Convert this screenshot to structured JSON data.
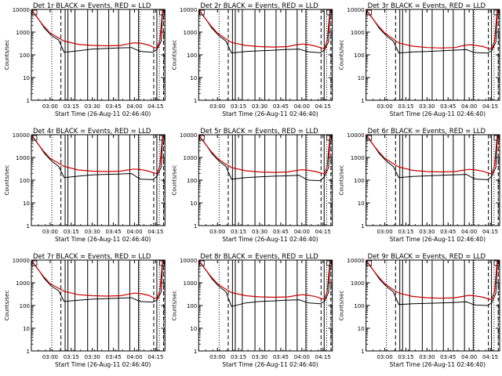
{
  "chart_data": [
    {
      "type": "line",
      "title": "Det 1r BLACK = Events, RED = LLD",
      "xlabel": "Start Time (26-Aug-11 02:46:40)",
      "ylabel": "Counts/sec",
      "yscale": "log",
      "ylim": [
        1,
        10000
      ],
      "xticks": [
        "03:00",
        "03:15",
        "03:30",
        "03:45",
        "04:00",
        "04:15"
      ],
      "yticks": [
        "1",
        "10",
        "100",
        "1000",
        "10000"
      ],
      "series": [
        {
          "color": "#000000",
          "x": [
            "02:46:40",
            "02:52",
            "02:56",
            "03:01",
            "03:06",
            "03:10",
            "03:20",
            "03:30",
            "03:40",
            "03:48",
            "03:53",
            "03:58",
            "04:03",
            "04:05",
            "04:13",
            "04:16",
            "04:19",
            "04:20"
          ],
          "y": [
            10000,
            3500,
            1500,
            700,
            450,
            130,
            150,
            180,
            190,
            200,
            205,
            210,
            150,
            140,
            130,
            175,
            400,
            9000
          ]
        },
        {
          "color": "#cc0000",
          "x": [
            "02:46:40",
            "02:50",
            "02:55",
            "03:00",
            "03:05",
            "03:10",
            "03:20",
            "03:30",
            "03:40",
            "03:50",
            "03:55",
            "04:00",
            "04:05",
            "04:10",
            "04:14",
            "04:16",
            "04:18",
            "04:20"
          ],
          "y": [
            10000,
            5000,
            2000,
            900,
            600,
            400,
            290,
            260,
            250,
            260,
            300,
            340,
            320,
            270,
            210,
            200,
            450,
            10000
          ]
        }
      ]
    },
    {
      "type": "line",
      "title": "Det 2r BLACK = Events, RED = LLD",
      "xlabel": "Start Time (26-Aug-11 02:46:40)",
      "ylabel": "Counts/sec",
      "yscale": "log",
      "ylim": [
        1,
        10000
      ],
      "xticks": [
        "03:00",
        "03:15",
        "03:30",
        "03:45",
        "04:00",
        "04:15"
      ],
      "yticks": [
        "1",
        "10",
        "100",
        "1000",
        "10000"
      ],
      "series": [
        {
          "color": "#000000",
          "x": [
            "02:46:40",
            "02:52",
            "02:56",
            "03:01",
            "03:06",
            "03:10",
            "03:20",
            "03:30",
            "03:40",
            "03:48",
            "03:53",
            "03:58",
            "04:03",
            "04:05",
            "04:13",
            "04:16",
            "04:19",
            "04:20"
          ],
          "y": [
            10000,
            3500,
            1500,
            700,
            400,
            120,
            140,
            150,
            160,
            170,
            175,
            180,
            145,
            135,
            125,
            160,
            380,
            8500
          ]
        },
        {
          "color": "#cc0000",
          "x": [
            "02:46:40",
            "02:50",
            "02:55",
            "03:00",
            "03:05",
            "03:10",
            "03:20",
            "03:30",
            "03:40",
            "03:50",
            "03:55",
            "04:00",
            "04:05",
            "04:10",
            "04:14",
            "04:16",
            "04:18",
            "04:20"
          ],
          "y": [
            10000,
            5000,
            2000,
            900,
            550,
            350,
            260,
            230,
            220,
            230,
            270,
            300,
            280,
            240,
            200,
            190,
            420,
            10000
          ]
        }
      ]
    },
    {
      "type": "line",
      "title": "Det 3r BLACK = Events, RED = LLD",
      "xlabel": "Start Time (26-Aug-11 02:46:40)",
      "ylabel": "Counts/sec",
      "yscale": "log",
      "ylim": [
        1,
        10000
      ],
      "xticks": [
        "03:00",
        "03:15",
        "03:30",
        "03:45",
        "04:00",
        "04:15"
      ],
      "yticks": [
        "1",
        "10",
        "100",
        "1000",
        "10000"
      ],
      "series": [
        {
          "color": "#000000",
          "x": [
            "02:46:40",
            "02:52",
            "02:56",
            "03:01",
            "03:06",
            "03:10",
            "03:20",
            "03:30",
            "03:40",
            "03:48",
            "03:53",
            "03:58",
            "04:03",
            "04:05",
            "04:13",
            "04:16",
            "04:19",
            "04:20"
          ],
          "y": [
            10000,
            3500,
            1500,
            700,
            400,
            120,
            135,
            140,
            150,
            160,
            165,
            170,
            130,
            125,
            120,
            150,
            370,
            8500
          ]
        },
        {
          "color": "#cc0000",
          "x": [
            "02:46:40",
            "02:50",
            "02:55",
            "03:00",
            "03:05",
            "03:10",
            "03:20",
            "03:30",
            "03:40",
            "03:50",
            "03:55",
            "04:00",
            "04:05",
            "04:10",
            "04:14",
            "04:16",
            "04:18",
            "04:20"
          ],
          "y": [
            10000,
            5000,
            2000,
            900,
            550,
            330,
            240,
            210,
            200,
            210,
            250,
            280,
            260,
            230,
            190,
            180,
            400,
            10000
          ]
        }
      ]
    },
    {
      "type": "line",
      "title": "Det 4r BLACK = Events, RED = LLD",
      "xlabel": "Start Time (26-Aug-11 02:46:40)",
      "ylabel": "Counts/sec",
      "yscale": "log",
      "ylim": [
        1,
        10000
      ],
      "xticks": [
        "03:00",
        "03:15",
        "03:30",
        "03:45",
        "04:00",
        "04:15"
      ],
      "yticks": [
        "1",
        "10",
        "100",
        "1000",
        "10000"
      ],
      "series": [
        {
          "color": "#000000",
          "x": [
            "02:46:40",
            "02:52",
            "02:56",
            "03:01",
            "03:06",
            "03:10",
            "03:20",
            "03:30",
            "03:40",
            "03:48",
            "03:53",
            "03:58",
            "04:03",
            "04:05",
            "04:13",
            "04:16",
            "04:19",
            "04:20"
          ],
          "y": [
            10000,
            3500,
            1500,
            700,
            400,
            130,
            150,
            170,
            180,
            185,
            190,
            195,
            120,
            110,
            105,
            150,
            380,
            8500
          ]
        },
        {
          "color": "#cc0000",
          "x": [
            "02:46:40",
            "02:50",
            "02:55",
            "03:00",
            "03:05",
            "03:10",
            "03:20",
            "03:30",
            "03:40",
            "03:50",
            "03:55",
            "04:00",
            "04:05",
            "04:10",
            "04:14",
            "04:16",
            "04:18",
            "04:20"
          ],
          "y": [
            10000,
            5000,
            2000,
            900,
            600,
            400,
            280,
            250,
            240,
            250,
            280,
            310,
            290,
            250,
            205,
            195,
            430,
            10000
          ]
        }
      ]
    },
    {
      "type": "line",
      "title": "Det 5r BLACK = Events, RED = LLD",
      "xlabel": "Start Time (26-Aug-11 02:46:40)",
      "ylabel": "Counts/sec",
      "yscale": "log",
      "ylim": [
        1,
        10000
      ],
      "xticks": [
        "03:00",
        "03:15",
        "03:30",
        "03:45",
        "04:00",
        "04:15"
      ],
      "yticks": [
        "1",
        "10",
        "100",
        "1000",
        "10000"
      ],
      "series": [
        {
          "color": "#000000",
          "x": [
            "02:46:40",
            "02:52",
            "02:56",
            "03:01",
            "03:06",
            "03:10",
            "03:20",
            "03:30",
            "03:40",
            "03:48",
            "03:53",
            "03:58",
            "04:03",
            "04:05",
            "04:13",
            "04:16",
            "04:19",
            "04:20"
          ],
          "y": [
            10000,
            3500,
            1500,
            700,
            400,
            110,
            130,
            140,
            150,
            155,
            160,
            165,
            110,
            100,
            95,
            140,
            360,
            8500
          ]
        },
        {
          "color": "#cc0000",
          "x": [
            "02:46:40",
            "02:50",
            "02:55",
            "03:00",
            "03:05",
            "03:10",
            "03:20",
            "03:30",
            "03:40",
            "03:50",
            "03:55",
            "04:00",
            "04:05",
            "04:10",
            "04:14",
            "04:16",
            "04:18",
            "04:20"
          ],
          "y": [
            10000,
            5000,
            2000,
            900,
            550,
            360,
            260,
            230,
            220,
            230,
            260,
            290,
            270,
            240,
            200,
            190,
            410,
            10000
          ]
        }
      ]
    },
    {
      "type": "line",
      "title": "Det 6r BLACK = Events, RED = LLD",
      "xlabel": "Start Time (26-Aug-11 02:46:40)",
      "ylabel": "Counts/sec",
      "yscale": "log",
      "ylim": [
        1,
        10000
      ],
      "xticks": [
        "03:00",
        "03:15",
        "03:30",
        "03:45",
        "04:00",
        "04:15"
      ],
      "yticks": [
        "1",
        "10",
        "100",
        "1000",
        "10000"
      ],
      "series": [
        {
          "color": "#000000",
          "x": [
            "02:46:40",
            "02:52",
            "02:56",
            "03:01",
            "03:06",
            "03:10",
            "03:20",
            "03:30",
            "03:40",
            "03:48",
            "03:53",
            "03:58",
            "04:03",
            "04:05",
            "04:13",
            "04:16",
            "04:19",
            "04:20"
          ],
          "y": [
            10000,
            3500,
            1500,
            700,
            400,
            130,
            145,
            155,
            165,
            170,
            175,
            180,
            120,
            110,
            105,
            145,
            370,
            8500
          ]
        },
        {
          "color": "#cc0000",
          "x": [
            "02:46:40",
            "02:50",
            "02:55",
            "03:00",
            "03:05",
            "03:10",
            "03:20",
            "03:30",
            "03:40",
            "03:50",
            "03:55",
            "04:00",
            "04:05",
            "04:10",
            "04:14",
            "04:16",
            "04:18",
            "04:20"
          ],
          "y": [
            10000,
            5000,
            2000,
            900,
            580,
            380,
            270,
            240,
            230,
            240,
            270,
            300,
            280,
            245,
            200,
            190,
            420,
            10000
          ]
        }
      ]
    },
    {
      "type": "line",
      "title": "Det 7r BLACK = Events, RED = LLD",
      "xlabel": "Start Time (26-Aug-11 02:46:40)",
      "ylabel": "Counts/sec",
      "yscale": "log",
      "ylim": [
        1,
        10000
      ],
      "xticks": [
        "03:00",
        "03:15",
        "03:30",
        "03:45",
        "04:00",
        "04:15"
      ],
      "yticks": [
        "1",
        "10",
        "100",
        "1000",
        "10000"
      ],
      "series": [
        {
          "color": "#000000",
          "x": [
            "02:46:40",
            "02:52",
            "02:56",
            "03:01",
            "03:06",
            "03:10",
            "03:20",
            "03:30",
            "03:40",
            "03:48",
            "03:53",
            "03:58",
            "04:03",
            "04:05",
            "04:13",
            "04:16",
            "04:19",
            "04:20"
          ],
          "y": [
            10000,
            3500,
            1500,
            700,
            450,
            150,
            170,
            190,
            200,
            210,
            215,
            220,
            160,
            150,
            140,
            175,
            400,
            9000
          ]
        },
        {
          "color": "#cc0000",
          "x": [
            "02:46:40",
            "02:50",
            "02:55",
            "03:00",
            "03:05",
            "03:10",
            "03:20",
            "03:30",
            "03:40",
            "03:50",
            "03:55",
            "04:00",
            "04:05",
            "04:10",
            "04:14",
            "04:16",
            "04:18",
            "04:20"
          ],
          "y": [
            10000,
            5000,
            2000,
            900,
            620,
            420,
            300,
            270,
            260,
            270,
            310,
            350,
            330,
            280,
            215,
            205,
            460,
            10000
          ]
        }
      ]
    },
    {
      "type": "line",
      "title": "Det 8r BLACK = Events, RED = LLD",
      "xlabel": "Start Time (26-Aug-11 02:46:40)",
      "ylabel": "Counts/sec",
      "yscale": "log",
      "ylim": [
        1,
        10000
      ],
      "xticks": [
        "03:00",
        "03:15",
        "03:30",
        "03:45",
        "04:00",
        "04:15"
      ],
      "yticks": [
        "1",
        "10",
        "100",
        "1000",
        "10000"
      ],
      "series": [
        {
          "color": "#000000",
          "x": [
            "02:46:40",
            "02:52",
            "02:56",
            "03:01",
            "03:06",
            "03:10",
            "03:20",
            "03:30",
            "03:40",
            "03:48",
            "03:53",
            "03:58",
            "04:03",
            "04:05",
            "04:13",
            "04:16",
            "04:19",
            "04:20"
          ],
          "y": [
            10000,
            3500,
            1500,
            700,
            400,
            90,
            130,
            150,
            160,
            170,
            175,
            180,
            140,
            130,
            120,
            150,
            380,
            8500
          ]
        },
        {
          "color": "#cc0000",
          "x": [
            "02:46:40",
            "02:50",
            "02:55",
            "03:00",
            "03:05",
            "03:10",
            "03:20",
            "03:30",
            "03:40",
            "03:50",
            "03:55",
            "04:00",
            "04:05",
            "04:10",
            "04:14",
            "04:16",
            "04:18",
            "04:20"
          ],
          "y": [
            10000,
            5000,
            2000,
            900,
            560,
            370,
            270,
            240,
            230,
            240,
            270,
            300,
            280,
            245,
            200,
            190,
            420,
            10000
          ]
        }
      ]
    },
    {
      "type": "line",
      "title": "Det 9r BLACK = Events, RED = LLD",
      "xlabel": "Start Time (26-Aug-11 02:46:40)",
      "ylabel": "Counts/sec",
      "yscale": "log",
      "ylim": [
        1,
        10000
      ],
      "xticks": [
        "03:00",
        "03:15",
        "03:30",
        "03:45",
        "04:00",
        "04:15"
      ],
      "yticks": [
        "1",
        "10",
        "100",
        "1000",
        "10000"
      ],
      "series": [
        {
          "color": "#000000",
          "x": [
            "02:46:40",
            "02:52",
            "02:56",
            "03:01",
            "03:06",
            "03:10",
            "03:20",
            "03:30",
            "03:40",
            "03:48",
            "03:53",
            "03:58",
            "04:03",
            "04:05",
            "04:13",
            "04:16",
            "04:19",
            "04:20"
          ],
          "y": [
            10000,
            3500,
            1500,
            700,
            400,
            110,
            120,
            125,
            130,
            135,
            140,
            145,
            110,
            105,
            100,
            130,
            360,
            8500
          ]
        },
        {
          "color": "#cc0000",
          "x": [
            "02:46:40",
            "02:50",
            "02:55",
            "03:00",
            "03:05",
            "03:10",
            "03:20",
            "03:30",
            "03:40",
            "03:50",
            "03:55",
            "04:00",
            "04:05",
            "04:10",
            "04:14",
            "04:16",
            "04:18",
            "04:20"
          ],
          "y": [
            10000,
            5000,
            2000,
            900,
            550,
            350,
            250,
            220,
            210,
            220,
            250,
            280,
            260,
            230,
            190,
            185,
            400,
            10000
          ]
        }
      ]
    }
  ]
}
